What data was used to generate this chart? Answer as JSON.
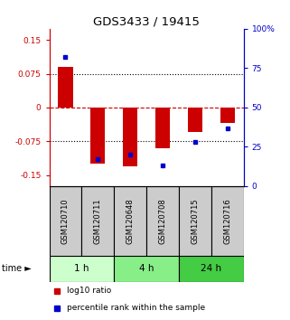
{
  "title": "GDS3433 / 19415",
  "samples": [
    "GSM120710",
    "GSM120711",
    "GSM120648",
    "GSM120708",
    "GSM120715",
    "GSM120716"
  ],
  "log10_ratio": [
    0.09,
    -0.125,
    -0.13,
    -0.09,
    -0.055,
    -0.035
  ],
  "percentile_rank": [
    82,
    17,
    20,
    13,
    28,
    37
  ],
  "groups": [
    {
      "label": "1 h",
      "indices": [
        0,
        1
      ]
    },
    {
      "label": "4 h",
      "indices": [
        2,
        3
      ]
    },
    {
      "label": "24 h",
      "indices": [
        4,
        5
      ]
    }
  ],
  "group_colors": [
    "#ccffcc",
    "#88ee88",
    "#44cc44"
  ],
  "ylim_left": [
    -0.175,
    0.175
  ],
  "yticks_left": [
    -0.15,
    -0.075,
    0,
    0.075,
    0.15
  ],
  "yticks_right": [
    0,
    25,
    50,
    75,
    100
  ],
  "bar_color": "#cc0000",
  "dot_color": "#0000cc",
  "bar_width": 0.45,
  "background_color": "#ffffff",
  "sample_box_color": "#cccccc"
}
